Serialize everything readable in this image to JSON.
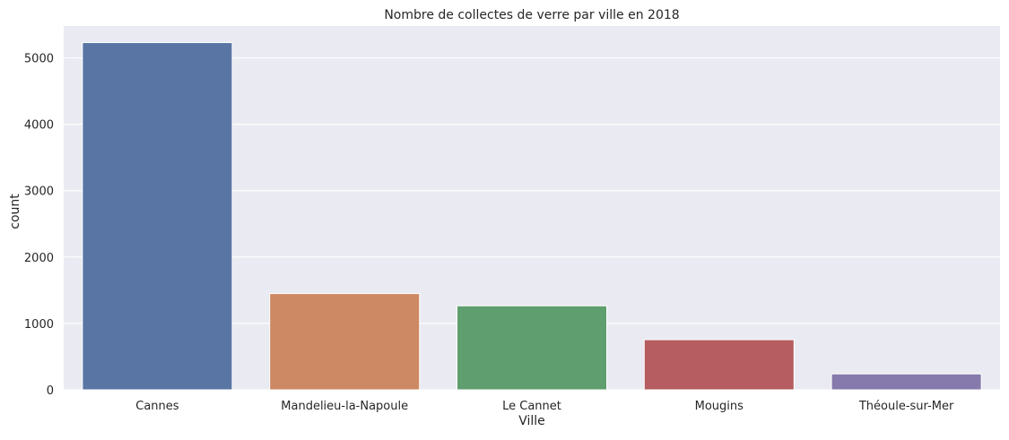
{
  "chart_data": {
    "type": "bar",
    "title": "Nombre de collectes de verre par ville en 2018",
    "xlabel": "Ville",
    "ylabel": "count",
    "categories": [
      "Cannes",
      "Mandelieu-la-Napoule",
      "Le Cannet",
      "Mougins",
      "Théoule-sur-Mer"
    ],
    "values": [
      5230,
      1450,
      1265,
      755,
      240
    ],
    "yticks": [
      0,
      1000,
      2000,
      3000,
      4000,
      5000
    ],
    "ylim": [
      0,
      5480
    ],
    "grid": true,
    "legend": "none",
    "colors": [
      "#5975a4",
      "#cc8963",
      "#5f9e6e",
      "#b55d60",
      "#857aab"
    ],
    "background_color": "#eaeaf2",
    "grid_color": "#ffffff"
  }
}
